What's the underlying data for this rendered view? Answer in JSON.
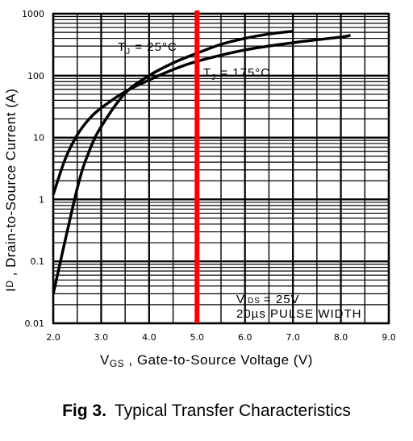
{
  "chart_data": {
    "type": "line",
    "title": "",
    "xlabel": {
      "main": "V",
      "sub": "GS",
      "rest": " , Gate-to-Source Voltage (V)"
    },
    "ylabel": {
      "main": "I",
      "sub": "D",
      "rest": " , Drain-to-Source Current (A)"
    },
    "x_scale": "linear",
    "y_scale": "log",
    "xlim": [
      2.0,
      9.0
    ],
    "ylim": [
      0.01,
      1000
    ],
    "x_ticks": [
      "2.0",
      "3.0",
      "4.0",
      "5.0",
      "6.0",
      "7.0",
      "8.0",
      "9.0"
    ],
    "y_ticks": [
      "0.01",
      "0.1",
      "1",
      "10",
      "100",
      "1000"
    ],
    "grid": true,
    "series": [
      {
        "name": "TJ = 25°C",
        "label": {
          "main": "T",
          "sub": "J",
          "rest": " = 25°C"
        },
        "x": [
          2.0,
          2.5,
          2.75,
          3.0,
          3.5,
          4.0,
          4.5,
          5.0,
          5.5,
          6.0,
          6.5,
          7.0
        ],
        "y": [
          0.03,
          1.5,
          6,
          15,
          52,
          100,
          160,
          230,
          320,
          400,
          470,
          520
        ]
      },
      {
        "name": "TJ = 175°C",
        "label": {
          "main": "T",
          "sub": "J",
          "rest": " = 175°C"
        },
        "x": [
          2.0,
          2.25,
          2.5,
          2.75,
          3.0,
          3.5,
          4.0,
          4.5,
          5.0,
          6.0,
          7.0,
          8.0,
          8.2
        ],
        "y": [
          1.2,
          4.5,
          11,
          20,
          30,
          55,
          85,
          125,
          170,
          260,
          340,
          420,
          450
        ]
      }
    ],
    "annotations": {
      "vds_main": "V",
      "vds_sub": "DS",
      "vds_rest": "= 25V",
      "pulse": "20µs PULSE WIDTH"
    },
    "marker_line": {
      "x": 5.0,
      "color": "#ff0000"
    }
  },
  "caption": {
    "fig": "Fig 3.",
    "text": "Typical Transfer Characteristics"
  }
}
